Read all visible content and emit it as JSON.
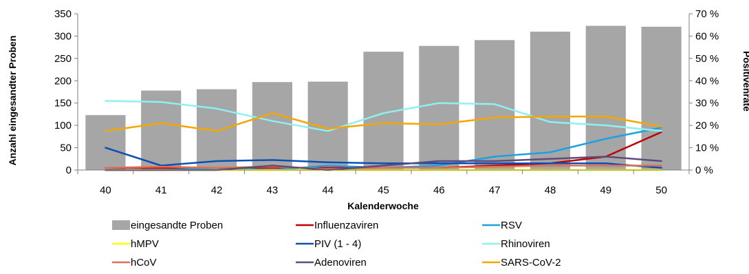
{
  "chart_data": {
    "type": "bar",
    "categories": [
      "40",
      "41",
      "42",
      "43",
      "44",
      "45",
      "46",
      "47",
      "48",
      "49",
      "50"
    ],
    "xlabel": "Kalenderwoche",
    "ylabel": "Anzahl eingesandter Proben",
    "y2label": "Positivenrate",
    "ylim": [
      0,
      350
    ],
    "yticks": [
      "0",
      "50",
      "100",
      "150",
      "200",
      "250",
      "300",
      "350"
    ],
    "y2lim": [
      0,
      70
    ],
    "y2ticks": [
      "0 %",
      "10 %",
      "20 %",
      "30 %",
      "40 %",
      "50 %",
      "60 %",
      "70 %"
    ],
    "grid": false,
    "legend_position": "bottom",
    "bars": {
      "name": "eingesandte Proben",
      "color": "#a6a6a6",
      "values": [
        123,
        178,
        181,
        197,
        198,
        265,
        278,
        291,
        310,
        323,
        321
      ]
    },
    "series": [
      {
        "name": "Influenzaviren",
        "color": "#c00000",
        "values": [
          1,
          1,
          1,
          1,
          1,
          1,
          1,
          2,
          3,
          6,
          17
        ]
      },
      {
        "name": "RSV",
        "color": "#1ba1e2",
        "values": [
          0,
          0,
          1,
          0,
          2,
          1,
          2,
          6,
          8,
          14,
          19
        ]
      },
      {
        "name": "hMPV",
        "color": "#ffff00",
        "values": [
          0,
          0,
          0,
          0,
          0,
          0,
          0,
          0,
          0,
          0,
          0
        ]
      },
      {
        "name": "PIV (1 - 4)",
        "color": "#0a50b4",
        "values": [
          10,
          2,
          4,
          4.5,
          3.5,
          3,
          3,
          3,
          3,
          3,
          1
        ]
      },
      {
        "name": "Rhinoviren",
        "color": "#8ef0f0",
        "values": [
          31,
          30.5,
          27.5,
          22,
          17.5,
          25.5,
          30,
          29.5,
          21.5,
          20,
          17.5
        ]
      },
      {
        "name": "hCoV",
        "color": "#e07050",
        "values": [
          1,
          1.5,
          1,
          1.5,
          0.5,
          1,
          1,
          1.5,
          2,
          2,
          2
        ]
      },
      {
        "name": "Adenoviren",
        "color": "#604a7b",
        "values": [
          0,
          0,
          0,
          2,
          0,
          2,
          4,
          4,
          5,
          6,
          4
        ]
      },
      {
        "name": "SARS-CoV-2",
        "color": "#f5a500",
        "values": [
          17.5,
          21,
          17.5,
          25.5,
          18.5,
          21,
          20.5,
          23.5,
          24,
          24,
          19.5
        ]
      }
    ]
  }
}
